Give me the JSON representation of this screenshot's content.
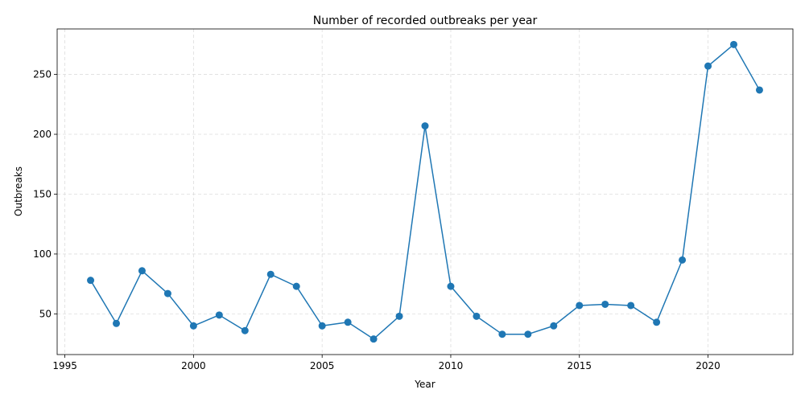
{
  "chart_data": {
    "type": "line",
    "title": "Number of recorded outbreaks per year",
    "xlabel": "Year",
    "ylabel": "Outbreaks",
    "x": [
      1996,
      1997,
      1998,
      1999,
      2000,
      2001,
      2002,
      2003,
      2004,
      2005,
      2006,
      2007,
      2008,
      2009,
      2010,
      2011,
      2012,
      2013,
      2014,
      2015,
      2016,
      2017,
      2018,
      2019,
      2020,
      2021,
      2022
    ],
    "series": [
      {
        "values": [
          78,
          42,
          86,
          67,
          40,
          49,
          36,
          83,
          73,
          40,
          43,
          29,
          48,
          207,
          73,
          48,
          33,
          33,
          40,
          57,
          58,
          57,
          43,
          95,
          257,
          275,
          237
        ],
        "color": "#1f77b4",
        "marker": "circle"
      }
    ],
    "xlim": [
      1994.7,
      2023.3
    ],
    "ylim": [
      16,
      288
    ],
    "xticks": [
      1995,
      2000,
      2005,
      2010,
      2015,
      2020
    ],
    "yticks": [
      50,
      100,
      150,
      200,
      250
    ],
    "grid": true,
    "legend": "none"
  }
}
